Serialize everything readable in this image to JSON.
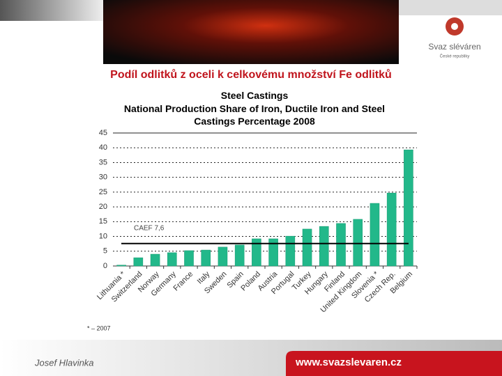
{
  "header": {
    "title": "Podíl odlitků z oceli k celkovému množství Fe odlitků",
    "logo_name": "Svaz sléváren",
    "logo_sub": "České republiky"
  },
  "chart_data": {
    "type": "bar",
    "title": "Steel Castings",
    "subtitle": "National Production Share of Iron, Ductile Iron and Steel Castings Percentage 2008",
    "categories": [
      "Lithuania *",
      "Switzerland",
      "Norway",
      "Germany",
      "France",
      "Italy",
      "Sweden",
      "Spain",
      "Poland",
      "Austria",
      "Portugal",
      "Turkey",
      "Hungary",
      "Finland",
      "United Kingdom",
      "Slovenia *",
      "Czech Rep.",
      "Belgium"
    ],
    "values": [
      0.3,
      2.8,
      4,
      4.5,
      5.2,
      5.4,
      6.4,
      7.1,
      9.2,
      9.2,
      10.1,
      12.5,
      13.4,
      14.4,
      15.8,
      21.2,
      24.7,
      39.3
    ],
    "color": "#22b88a",
    "ylim": [
      0,
      45
    ],
    "yticks": [
      0,
      5,
      10,
      15,
      20,
      25,
      30,
      35,
      40,
      45
    ],
    "grid": true,
    "reference": {
      "label": "CAEF 7,6",
      "value": 7.6
    },
    "note": "* – 2007"
  },
  "footer": {
    "author": "Josef Hlavinka",
    "url": "www.svazslevaren.cz"
  }
}
